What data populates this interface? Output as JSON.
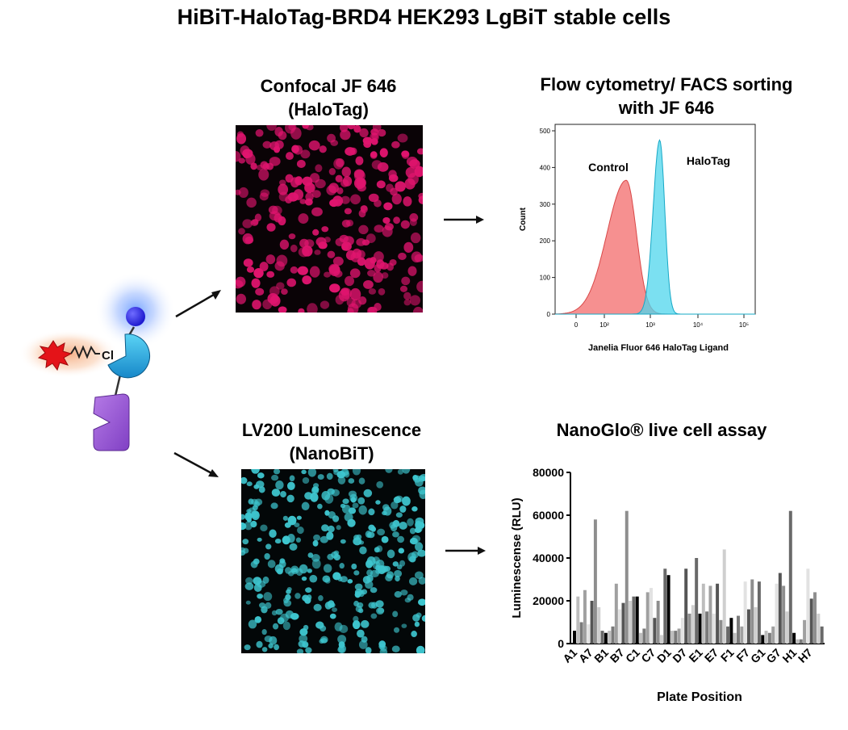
{
  "title": "HiBiT-HaloTag-BRD4 HEK293 LgBiT stable cells",
  "construct": {
    "chloride_label": "Cl"
  },
  "panels": {
    "confocal": {
      "line1": "Confocal JF 646",
      "line2": "(HaloTag)"
    },
    "flow": {
      "line1": "Flow cytometry/ FACS sorting",
      "line2": "with JF 646"
    },
    "lv200": {
      "line1": "LV200 Luminescence",
      "line2": "(NanoBiT)"
    },
    "nanoglo": {
      "line1": "NanoGlo® live cell assay"
    }
  },
  "colors": {
    "confocal_cells": "#e0146e",
    "confocal_bg": "#0a0306",
    "lv200_cells": "#3ec6cf",
    "lv200_bg": "#030708",
    "control": "#f47c7c",
    "halotag": "#4fd6ec",
    "accent_blue": "#1f9fe0",
    "purple": "#9a55d4"
  },
  "chart_data": [
    {
      "type": "area",
      "title": "Flow cytometry/ FACS sorting with JF 646",
      "xlabel": "Janelia Fluor 646 HaloTag Ligand",
      "ylabel": "Count",
      "x_scale": "log",
      "x_ticks": [
        "0",
        "10²",
        "10³",
        "10⁴",
        "10⁵"
      ],
      "y_ticks": [
        "0",
        "100",
        "200",
        "300",
        "400",
        "500"
      ],
      "ylim": [
        0,
        500
      ],
      "series": [
        {
          "name": "Control",
          "peak_x": 300,
          "peak_count": 365
        },
        {
          "name": "HaloTag",
          "peak_x": 1600,
          "peak_count": 475
        }
      ],
      "annotations": [
        "Control",
        "HaloTag"
      ]
    },
    {
      "type": "bar",
      "title": "NanoGlo® live cell assay",
      "xlabel": "Plate Position",
      "ylabel": "Luminescense (RLU)",
      "ylim": [
        0,
        80000
      ],
      "y_ticks": [
        "0",
        "20000",
        "40000",
        "60000",
        "80000"
      ],
      "x_ticks": [
        "A1",
        "A7",
        "B1",
        "B7",
        "C1",
        "C7",
        "D1",
        "D7",
        "E1",
        "E7",
        "F1",
        "F7",
        "G1",
        "G7",
        "H1",
        "H7"
      ],
      "values": [
        6000,
        22000,
        10000,
        25000,
        9000,
        20000,
        58000,
        17000,
        6000,
        5000,
        6000,
        8000,
        28000,
        16000,
        19000,
        62000,
        20000,
        22000,
        22000,
        5000,
        7000,
        24000,
        26000,
        12000,
        20000,
        4000,
        35000,
        32000,
        6000,
        6000,
        7000,
        12000,
        35000,
        14000,
        18000,
        40000,
        14000,
        28000,
        15000,
        27000,
        14000,
        28000,
        11000,
        44000,
        8000,
        12000,
        5000,
        13000,
        8000,
        29000,
        16000,
        30000,
        17000,
        29000,
        4000,
        6000,
        5000,
        8000,
        28000,
        33000,
        27000,
        15000,
        62000,
        5000,
        2000,
        2000,
        11000,
        35000,
        21000,
        24000,
        14000,
        8000
      ]
    }
  ]
}
